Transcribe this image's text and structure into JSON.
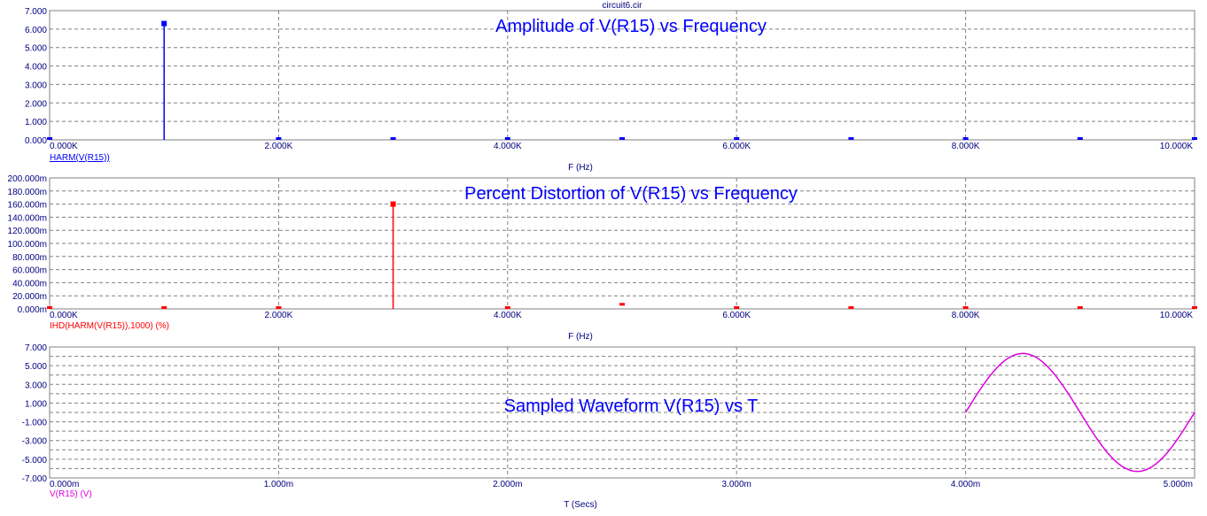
{
  "window_title": "circuit6.cir",
  "chart_data": [
    {
      "type": "bar",
      "title": "Amplitude of V(R15) vs Frequency",
      "xlabel": "F (Hz)",
      "series_label": "HARM(V(R15))",
      "color": "#0000ff",
      "xlim": [
        0,
        10000
      ],
      "ylim": [
        0,
        7
      ],
      "x_ticks": [
        0,
        2000,
        4000,
        6000,
        8000,
        10000
      ],
      "x_tick_labels": [
        "0.000K",
        "2.000K",
        "4.000K",
        "6.000K",
        "8.000K",
        "10.000K"
      ],
      "y_ticks": [
        0,
        1,
        2,
        3,
        4,
        5,
        6,
        7
      ],
      "y_tick_labels": [
        "0.000",
        "1.000",
        "2.000",
        "3.000",
        "4.000",
        "5.000",
        "6.000",
        "7.000"
      ],
      "grid": true,
      "x": [
        0,
        1000,
        2000,
        3000,
        4000,
        5000,
        6000,
        7000,
        8000,
        9000,
        10000
      ],
      "values": [
        0,
        6.3,
        0,
        0,
        0,
        0,
        0,
        0,
        0,
        0,
        0
      ]
    },
    {
      "type": "bar",
      "title": "Percent Distortion of V(R15) vs Frequency",
      "xlabel": "F (Hz)",
      "series_label": "IHD(HARM(V(R15)),1000) (%)",
      "color": "#ff0000",
      "xlim": [
        0,
        10000
      ],
      "ylim": [
        0,
        0.2
      ],
      "x_ticks": [
        0,
        2000,
        4000,
        6000,
        8000,
        10000
      ],
      "x_tick_labels": [
        "0.000K",
        "2.000K",
        "4.000K",
        "6.000K",
        "8.000K",
        "10.000K"
      ],
      "y_ticks": [
        0,
        0.02,
        0.04,
        0.06,
        0.08,
        0.1,
        0.12,
        0.14,
        0.16,
        0.18,
        0.2
      ],
      "y_tick_labels": [
        "0.000m",
        "20.000m",
        "40.000m",
        "60.000m",
        "80.000m",
        "100.000m",
        "120.000m",
        "140.000m",
        "160.000m",
        "180.000m",
        "200.000m"
      ],
      "grid": true,
      "x": [
        0,
        1000,
        2000,
        3000,
        4000,
        5000,
        6000,
        7000,
        8000,
        9000,
        10000
      ],
      "values": [
        0,
        0,
        0,
        0.16,
        0,
        0.005,
        0,
        0,
        0,
        0,
        0
      ]
    },
    {
      "type": "line",
      "title": "Sampled Waveform  V(R15) vs T",
      "xlabel": "T (Secs)",
      "series_label": "V(R15) (V)",
      "color": "#dd00dd",
      "xlim": [
        0,
        0.005
      ],
      "ylim": [
        -7,
        7
      ],
      "x_ticks": [
        0,
        0.001,
        0.002,
        0.003,
        0.004,
        0.005
      ],
      "x_tick_labels": [
        "0.000m",
        "1.000m",
        "2.000m",
        "3.000m",
        "4.000m",
        "5.000m"
      ],
      "y_ticks": [
        -7,
        -5,
        -3,
        -1,
        1,
        3,
        5,
        7
      ],
      "y_tick_labels": [
        "-7.000",
        "-5.000",
        "-3.000",
        "-1.000",
        "1.000",
        "3.000",
        "5.000",
        "7.000"
      ],
      "y_grid_step": 1,
      "grid": true,
      "waveform": {
        "shape": "sine",
        "amplitude": 6.3,
        "frequency_hz": 1000,
        "t_start": 0.004,
        "t_end": 0.005
      }
    }
  ]
}
